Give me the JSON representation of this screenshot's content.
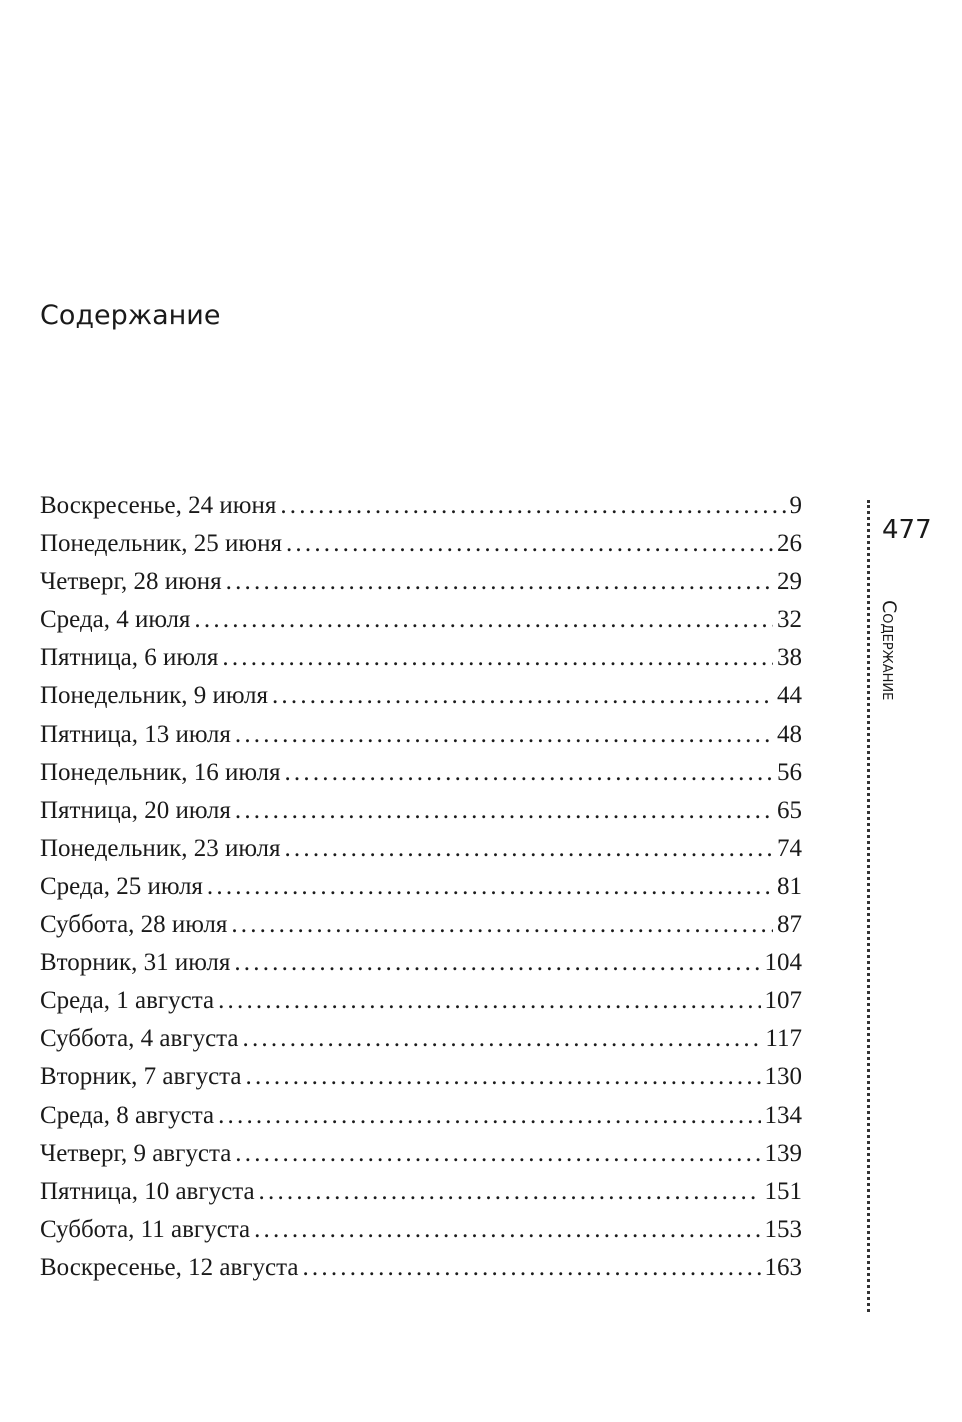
{
  "title": "Содержание",
  "folio": "477",
  "running_head": "Содержание",
  "entries": [
    {
      "label": "Воскресенье, 24 июня",
      "page": "9"
    },
    {
      "label": "Понедельник, 25 июня",
      "page": "26"
    },
    {
      "label": "Четверг, 28 июня",
      "page": "29"
    },
    {
      "label": "Среда, 4 июля",
      "page": "32"
    },
    {
      "label": "Пятница, 6 июля",
      "page": "38"
    },
    {
      "label": "Понедельник, 9 июля",
      "page": "44"
    },
    {
      "label": "Пятница, 13 июля",
      "page": "48"
    },
    {
      "label": "Понедельник, 16 июля",
      "page": "56"
    },
    {
      "label": "Пятница, 20 июля",
      "page": "65"
    },
    {
      "label": "Понедельник, 23 июля",
      "page": "74"
    },
    {
      "label": "Среда, 25 июля",
      "page": "81"
    },
    {
      "label": "Суббота, 28 июля",
      "page": "87"
    },
    {
      "label": "Вторник, 31 июля",
      "page": "104"
    },
    {
      "label": "Среда, 1 августа",
      "page": "107"
    },
    {
      "label": "Суббота, 4 августа",
      "page": "117"
    },
    {
      "label": "Вторник, 7 августа",
      "page": "130"
    },
    {
      "label": "Среда, 8 августа",
      "page": "134"
    },
    {
      "label": "Четверг, 9 августа",
      "page": "139"
    },
    {
      "label": "Пятница, 10 августа",
      "page": "151"
    },
    {
      "label": "Суббота, 11 августа",
      "page": "153"
    },
    {
      "label": "Воскресенье, 12 августа",
      "page": "163"
    }
  ]
}
